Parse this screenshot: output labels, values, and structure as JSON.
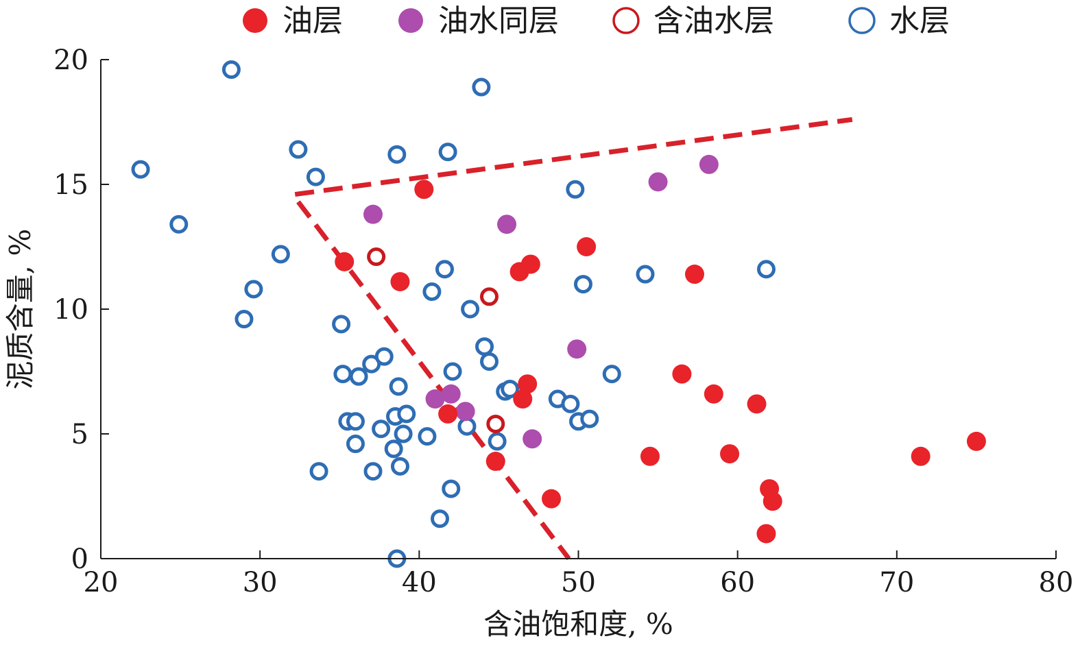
{
  "chart_data": {
    "type": "scatter",
    "xlabel": "含油饱和度, %",
    "ylabel": "泥质含量, %",
    "xlim": [
      20,
      80
    ],
    "ylim": [
      0,
      20
    ],
    "xticks": [
      20,
      30,
      40,
      50,
      60,
      70,
      80
    ],
    "yticks": [
      0,
      5,
      10,
      15,
      20
    ],
    "grid": false,
    "legend_position": "top",
    "series": [
      {
        "name": "油层",
        "marker": "filled-circle",
        "color": "#e8232a",
        "points": [
          [
            35.3,
            11.9
          ],
          [
            38.8,
            11.1
          ],
          [
            40.3,
            14.8
          ],
          [
            41.8,
            5.8
          ],
          [
            44.8,
            3.9
          ],
          [
            46.5,
            6.4
          ],
          [
            46.8,
            7.0
          ],
          [
            46.3,
            11.5
          ],
          [
            47.0,
            11.8
          ],
          [
            48.3,
            2.4
          ],
          [
            50.5,
            12.5
          ],
          [
            54.5,
            4.1
          ],
          [
            56.5,
            7.4
          ],
          [
            57.3,
            11.4
          ],
          [
            58.5,
            6.6
          ],
          [
            59.5,
            4.2
          ],
          [
            61.2,
            6.2
          ],
          [
            61.8,
            1.0
          ],
          [
            62.0,
            2.8
          ],
          [
            62.2,
            2.3
          ],
          [
            71.5,
            4.1
          ],
          [
            75.0,
            4.7
          ]
        ]
      },
      {
        "name": "油水同层",
        "marker": "filled-circle",
        "color": "#ad4dad",
        "points": [
          [
            37.1,
            13.8
          ],
          [
            41.0,
            6.4
          ],
          [
            42.0,
            6.6
          ],
          [
            42.9,
            5.9
          ],
          [
            45.5,
            13.4
          ],
          [
            47.1,
            4.8
          ],
          [
            49.9,
            8.4
          ],
          [
            55.0,
            15.1
          ],
          [
            58.2,
            15.8
          ]
        ]
      },
      {
        "name": "含油水层",
        "marker": "open-circle",
        "color": "#c8191e",
        "points": [
          [
            37.3,
            12.1
          ],
          [
            44.4,
            10.5
          ],
          [
            44.8,
            5.4
          ]
        ]
      },
      {
        "name": "水层",
        "marker": "open-circle",
        "color": "#2e6db4",
        "points": [
          [
            22.5,
            15.6
          ],
          [
            24.9,
            13.4
          ],
          [
            28.2,
            19.6
          ],
          [
            29.0,
            9.6
          ],
          [
            29.6,
            10.8
          ],
          [
            31.3,
            12.2
          ],
          [
            32.4,
            16.4
          ],
          [
            33.5,
            15.3
          ],
          [
            33.7,
            3.5
          ],
          [
            35.1,
            9.4
          ],
          [
            35.2,
            7.4
          ],
          [
            35.5,
            5.5
          ],
          [
            36.0,
            5.5
          ],
          [
            36.0,
            4.6
          ],
          [
            36.2,
            7.3
          ],
          [
            37.0,
            7.8
          ],
          [
            37.1,
            3.5
          ],
          [
            37.6,
            5.2
          ],
          [
            37.8,
            8.1
          ],
          [
            38.4,
            4.4
          ],
          [
            38.5,
            5.7
          ],
          [
            38.6,
            16.2
          ],
          [
            38.6,
            0.0
          ],
          [
            38.7,
            6.9
          ],
          [
            38.8,
            3.7
          ],
          [
            39.0,
            5.0
          ],
          [
            39.2,
            5.8
          ],
          [
            40.5,
            4.9
          ],
          [
            40.8,
            10.7
          ],
          [
            41.3,
            1.6
          ],
          [
            41.6,
            11.6
          ],
          [
            41.8,
            16.3
          ],
          [
            42.0,
            2.8
          ],
          [
            42.1,
            7.5
          ],
          [
            43.0,
            5.3
          ],
          [
            43.2,
            10.0
          ],
          [
            43.9,
            18.9
          ],
          [
            44.1,
            8.5
          ],
          [
            44.4,
            7.9
          ],
          [
            44.9,
            4.7
          ],
          [
            45.4,
            6.7
          ],
          [
            45.7,
            6.8
          ],
          [
            48.7,
            6.4
          ],
          [
            49.5,
            6.2
          ],
          [
            49.8,
            14.8
          ],
          [
            50.0,
            5.5
          ],
          [
            50.3,
            11.0
          ],
          [
            50.7,
            5.6
          ],
          [
            52.1,
            7.4
          ],
          [
            54.2,
            11.4
          ],
          [
            61.8,
            11.6
          ]
        ]
      }
    ],
    "annotations": [
      {
        "type": "dashed-line",
        "color": "#d8212a",
        "from": [
          32.2,
          14.6
        ],
        "to": [
          67.2,
          17.6
        ]
      },
      {
        "type": "dashed-line",
        "color": "#d8212a",
        "from": [
          32.4,
          14.3
        ],
        "to": [
          49.4,
          0.0
        ]
      }
    ]
  }
}
